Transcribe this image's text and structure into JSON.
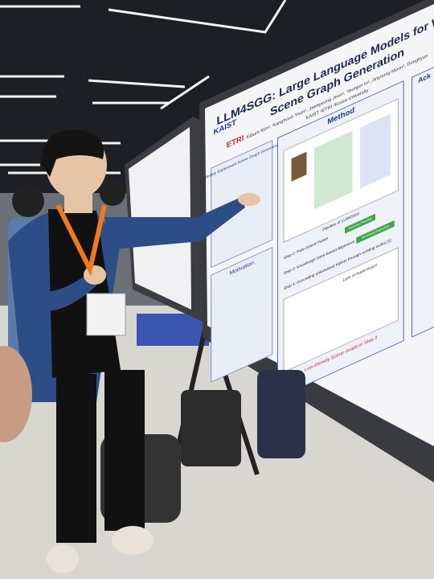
{
  "poster": {
    "title_line1": "LLM4SGG: Large Language Models for W",
    "title_line2": "Scene Graph Generation",
    "authors": "Kibum Kim¹, Kanghoon Yoon¹, Jaehyeong Jeon¹, Yeonjun In¹, Jinyoung Moon², Donghyun",
    "affiliations": "KAIST ¹ETRI ²Korea University",
    "logos": [
      "KAIST",
      "ETRI"
    ],
    "method": {
      "heading": "Method",
      "pipeline": "Pipeline of LLM4SGG",
      "steps": [
        "Step 2: Rule-based Parser",
        "Step 3: Knowledge base-based Alignment",
        "Step 4: Grounding unlocalized triplets through existing works [1]"
      ],
      "tags": [
        "Reduced Parsing",
        "KB-based Alignment"
      ],
      "lack": "Lack of Supervision!",
      "low_density": "Low-Density Scene Graph in Step 3"
    },
    "wsgg": "Weakly Supervised Scene Graph Generation",
    "motivation": "Motivation"
  },
  "side_poster": {
    "heading": "Ack"
  }
}
